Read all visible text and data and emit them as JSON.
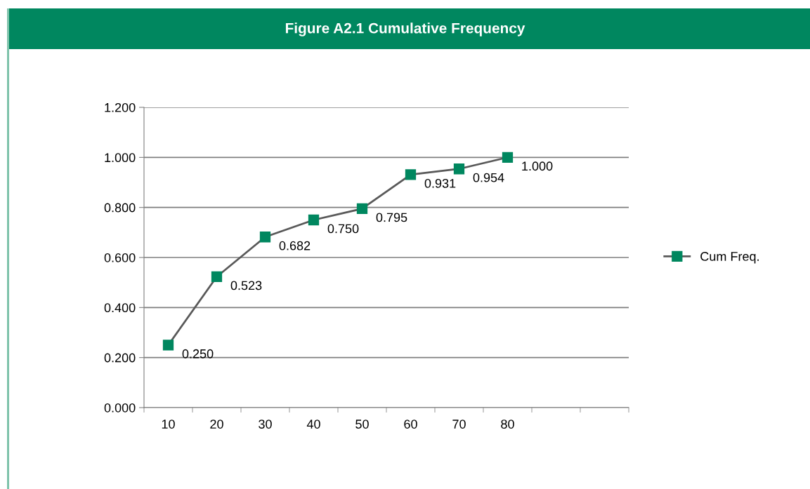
{
  "chart_data": {
    "type": "line",
    "title": "Figure A2.1 Cumulative Frequency",
    "categories": [
      "10",
      "20",
      "30",
      "40",
      "50",
      "60",
      "70",
      "80",
      null,
      null
    ],
    "series": [
      {
        "name": "Cum Freq.",
        "color": "#00875f",
        "values": [
          0.25,
          0.523,
          0.682,
          0.75,
          0.795,
          0.931,
          0.954,
          1.0,
          null,
          null
        ],
        "value_labels": [
          "0.250",
          "0.523",
          "0.682",
          "0.750",
          "0.795",
          "0.931",
          "0.954",
          "1.000",
          null,
          null
        ]
      }
    ],
    "ylim": [
      0,
      1.2
    ],
    "yticks": [
      {
        "value": 0,
        "label": "0.000"
      },
      {
        "value": 0.2,
        "label": "0.200"
      },
      {
        "value": 0.4,
        "label": "0.400"
      },
      {
        "value": 0.6,
        "label": "0.600"
      },
      {
        "value": 0.8,
        "label": "0.800"
      },
      {
        "value": 1.0,
        "label": "1.000"
      },
      {
        "value": 1.2,
        "label": "1.200"
      }
    ],
    "grid": "y",
    "legend": "right",
    "marker": "square",
    "line_style": "solid"
  }
}
